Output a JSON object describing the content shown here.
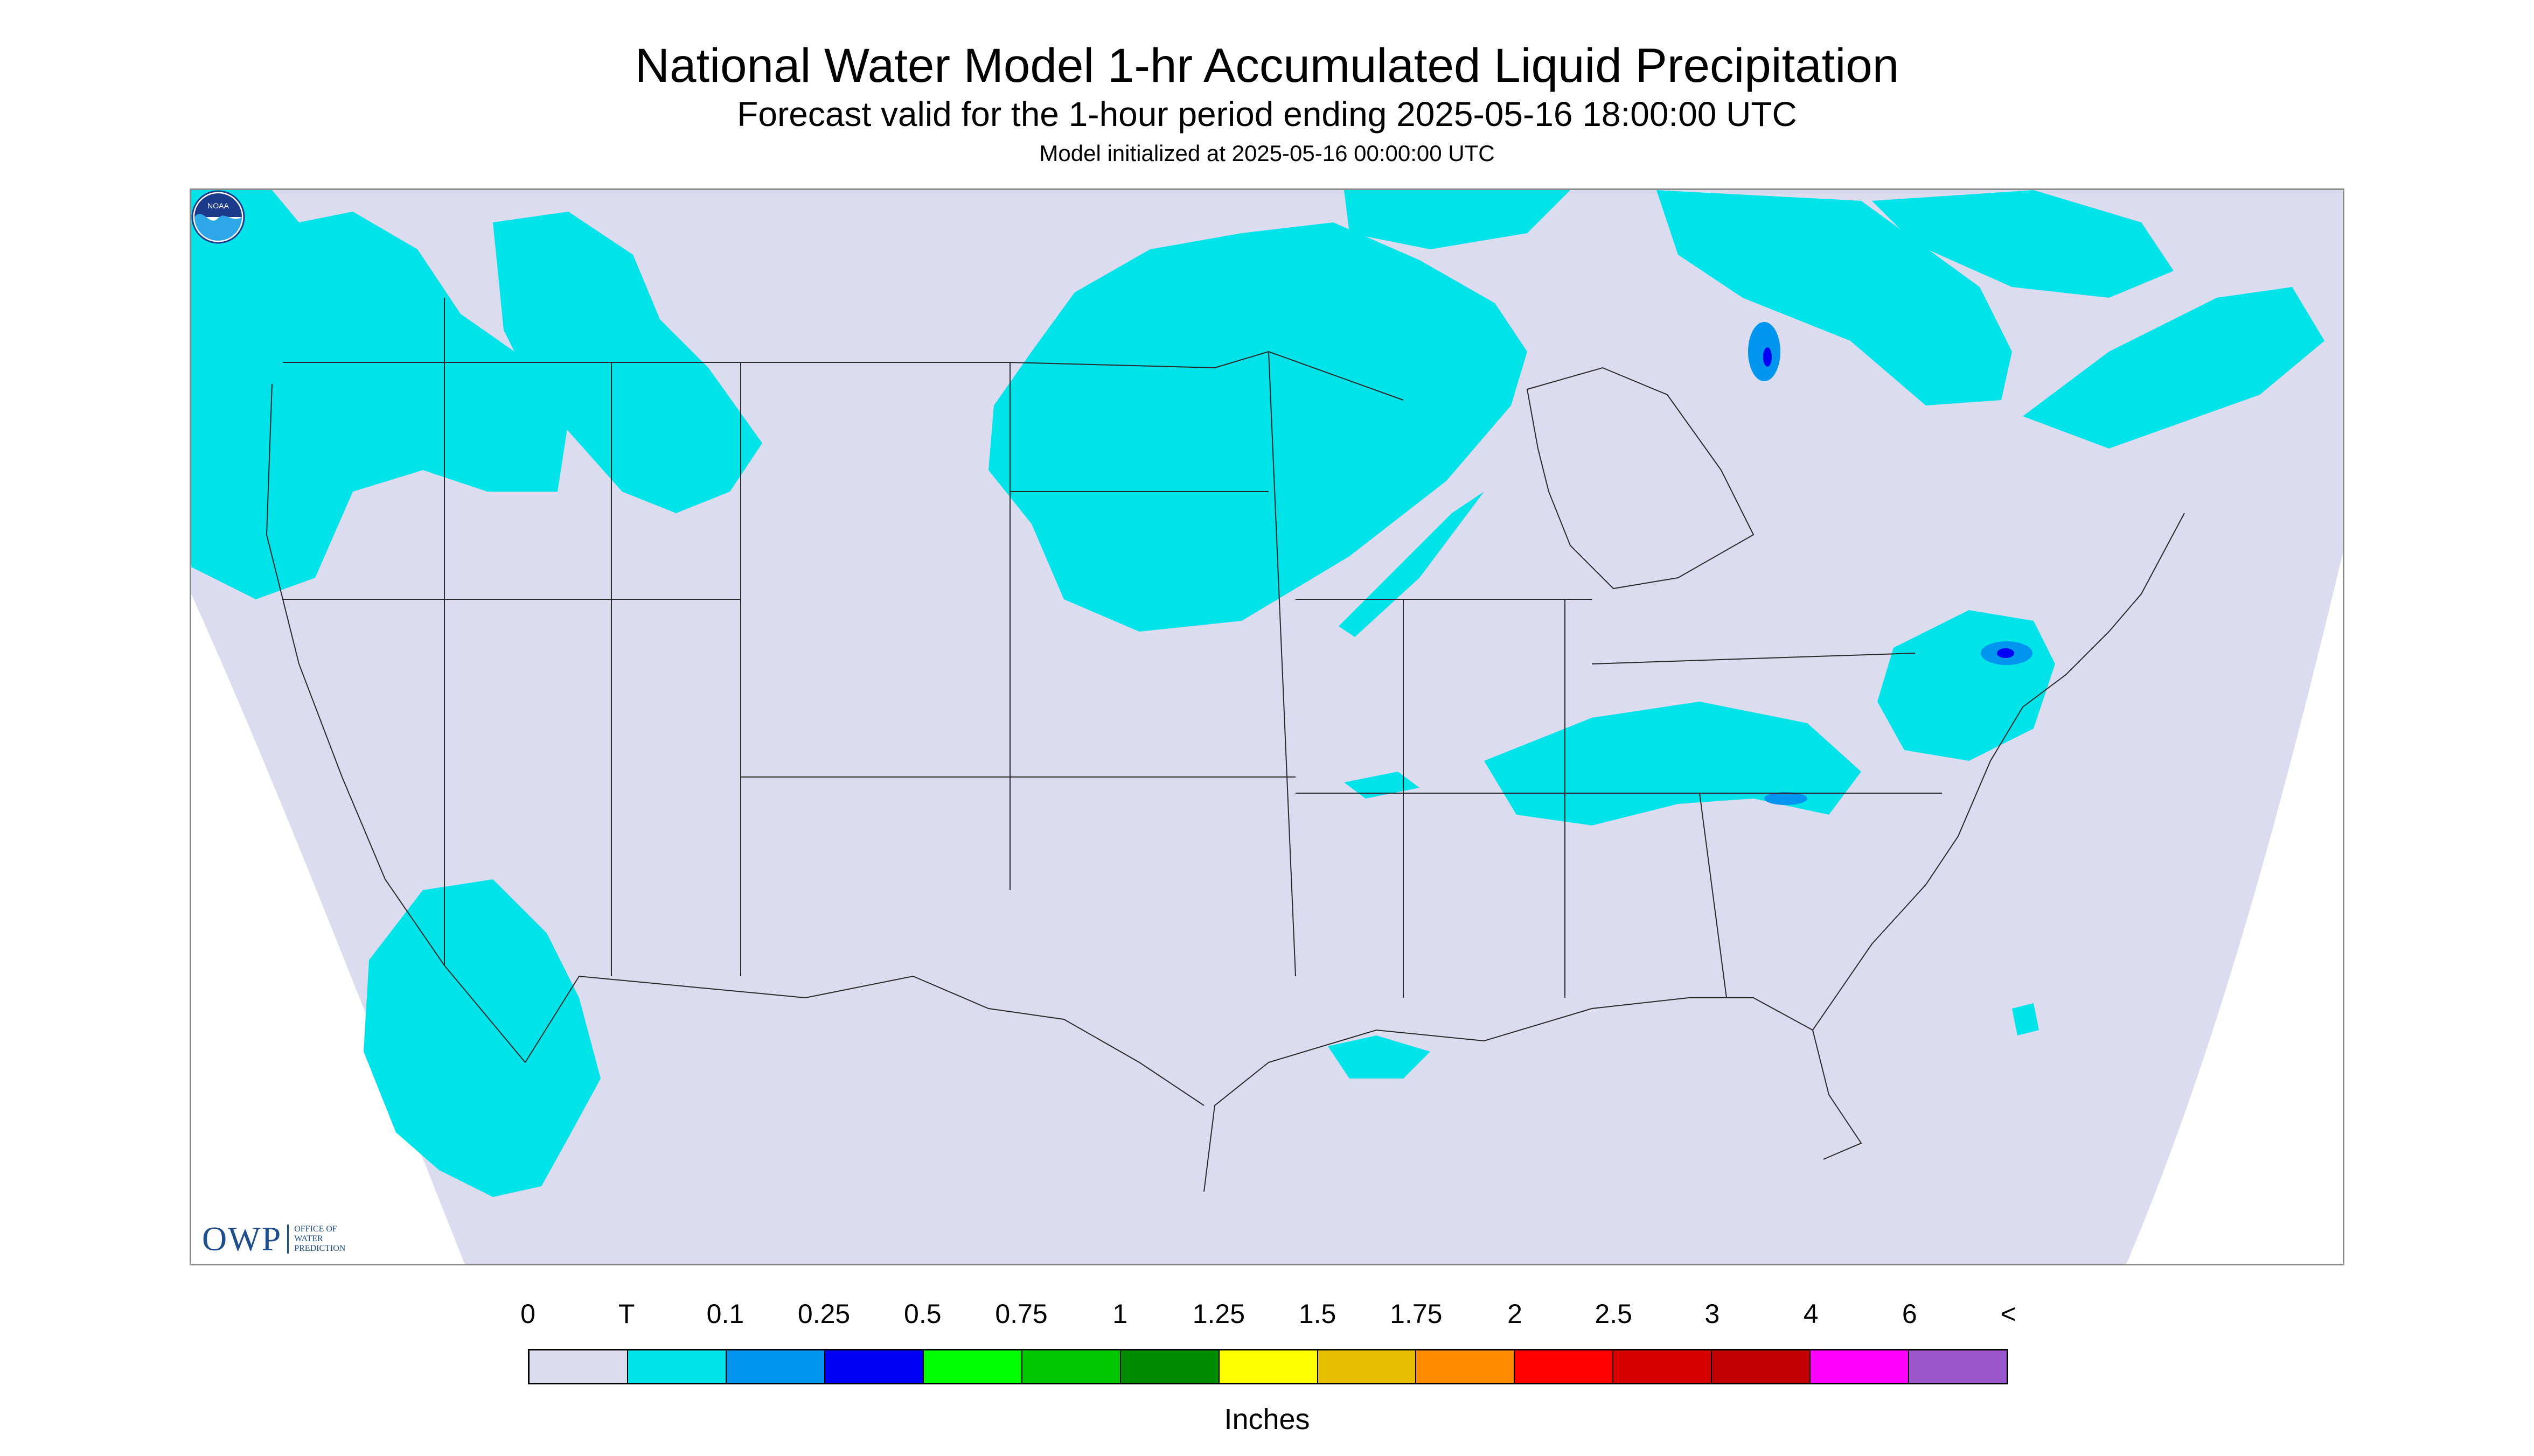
{
  "header": {
    "title": "National Water Model 1-hr Accumulated Liquid Precipitation",
    "subtitle": "Forecast valid for the 1-hour period ending 2025-05-16 18:00:00 UTC",
    "init_line": "Model initialized at 2025-05-16 00:00:00 UTC"
  },
  "map": {
    "background_color": "#dcdcf0",
    "precip_color": "#00e3e8",
    "heavier_color": "#0096f0",
    "heaviest_color": "#0000f5",
    "logos": {
      "owp": {
        "mark": "OWP",
        "lines": [
          "OFFICE OF",
          "WATER",
          "PREDICTION"
        ],
        "icon": "owp-logo"
      },
      "noaa": {
        "icon": "noaa-emblem-icon",
        "text": "NOAA"
      }
    }
  },
  "legend": {
    "tick_labels": [
      "0",
      "T",
      "0.1",
      "0.25",
      "0.5",
      "0.75",
      "1",
      "1.25",
      "1.5",
      "1.75",
      "2",
      "2.5",
      "3",
      "4",
      "6",
      "<"
    ],
    "colors": [
      "#dcdcf0",
      "#00e3e8",
      "#0096f0",
      "#0000f5",
      "#00ff00",
      "#00c800",
      "#008c00",
      "#ffff00",
      "#e6bf00",
      "#ff8c00",
      "#ff0000",
      "#d60000",
      "#c00000",
      "#ff00ff",
      "#9955c9"
    ],
    "units": "Inches"
  }
}
